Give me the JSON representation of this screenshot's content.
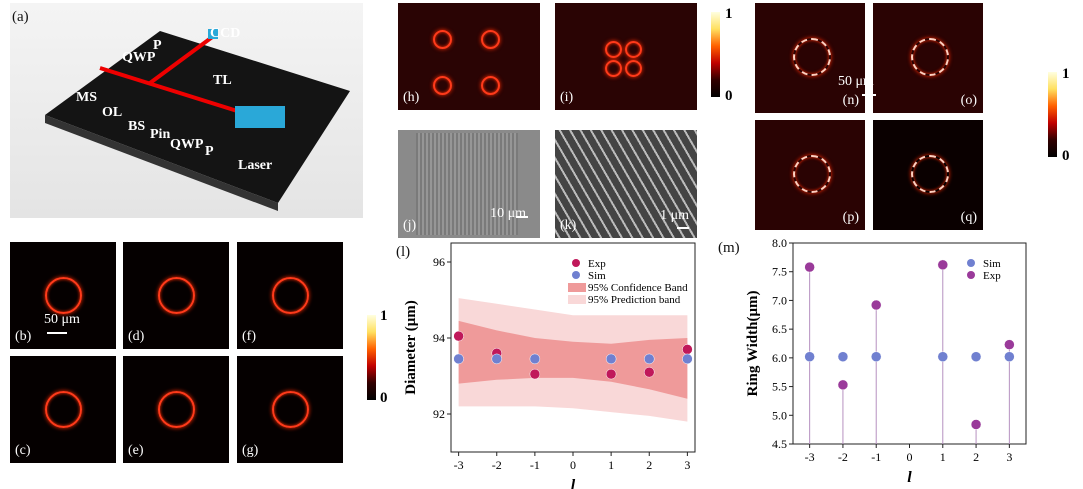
{
  "panel_a": {
    "label": "(a)",
    "components": [
      "P",
      "CCD",
      "QWP",
      "TL",
      "MS",
      "OL",
      "BS",
      "Pin",
      "QWP",
      "P",
      "Laser"
    ]
  },
  "ring_panels": [
    {
      "label": "(b)"
    },
    {
      "label": "(d)"
    },
    {
      "label": "(f)"
    },
    {
      "label": "(c)"
    },
    {
      "label": "(e)"
    },
    {
      "label": "(g)"
    }
  ],
  "scale_bar_rings": "50 μm",
  "colorbar": {
    "max": "1",
    "min": "0"
  },
  "panel_h": {
    "label": "(h)"
  },
  "panel_i": {
    "label": "(i)"
  },
  "panel_j": {
    "label": "(j)",
    "scale": "10 μm"
  },
  "panel_k": {
    "label": "(k)",
    "scale": "1 μm"
  },
  "focus_panels": [
    {
      "label": "(n)"
    },
    {
      "label": "(o)"
    },
    {
      "label": "(p)"
    },
    {
      "label": "(q)"
    }
  ],
  "scale_bar_focus": "50 μm",
  "chart_data": [
    {
      "panel": "(l)",
      "type": "scatter",
      "xlabel": "l",
      "ylabel": "Diameter (μm)",
      "x": [
        -3,
        -2,
        -1,
        1,
        2,
        3
      ],
      "xticks": [
        "-3",
        "-2",
        "-1",
        "0",
        "1",
        "2",
        "3"
      ],
      "xlim": [
        -3.2,
        3.2
      ],
      "yticks": [
        "92",
        "94",
        "96"
      ],
      "ylim": [
        91,
        96.5
      ],
      "series": [
        {
          "name": "Exp",
          "values": [
            94.05,
            93.6,
            93.05,
            93.05,
            93.1,
            93.7
          ],
          "color": "#c0185a"
        },
        {
          "name": "Sim",
          "values": [
            93.45,
            93.45,
            93.45,
            93.45,
            93.45,
            93.45
          ],
          "color": "#7080d0"
        }
      ],
      "bands": [
        {
          "name": "95% Prediction band",
          "x": [
            -3,
            -2,
            -1,
            0,
            1,
            2,
            3
          ],
          "upper": [
            95.05,
            94.9,
            94.75,
            94.6,
            94.6,
            94.6,
            94.6
          ],
          "lower": [
            92.2,
            92.2,
            92.2,
            92.15,
            92.05,
            91.95,
            91.8
          ],
          "color": "#f9d8d8"
        },
        {
          "name": "95% Confidence Band",
          "x": [
            -3,
            -2,
            -1,
            0,
            1,
            2,
            3
          ],
          "upper": [
            94.45,
            94.2,
            94.0,
            93.9,
            93.85,
            93.95,
            94.0
          ],
          "lower": [
            92.8,
            92.9,
            92.95,
            92.95,
            92.85,
            92.65,
            92.4
          ],
          "color": "#ef9a9a"
        }
      ],
      "legend": "top-right"
    },
    {
      "panel": "(m)",
      "type": "scatter",
      "xlabel": "l",
      "ylabel": "Ring Width(μm)",
      "x": [
        -3,
        -2,
        -1,
        1,
        2,
        3
      ],
      "xticks": [
        "-3",
        "-2",
        "-1",
        "0",
        "1",
        "2",
        "3"
      ],
      "xlim": [
        -3.5,
        3.5
      ],
      "yticks": [
        "4.5",
        "5.0",
        "5.5",
        "6.0",
        "6.5",
        "7.0",
        "7.5",
        "8.0"
      ],
      "ylim": [
        4.5,
        8.0
      ],
      "series": [
        {
          "name": "Sim",
          "values": [
            6.02,
            6.02,
            6.02,
            6.02,
            6.02,
            6.02
          ],
          "color": "#7080d0"
        },
        {
          "name": "Exp",
          "values": [
            7.58,
            5.53,
            6.92,
            7.62,
            4.84,
            6.23
          ],
          "color": "#9a3a9a"
        }
      ],
      "drop_lines": true,
      "legend": "top-right"
    }
  ]
}
